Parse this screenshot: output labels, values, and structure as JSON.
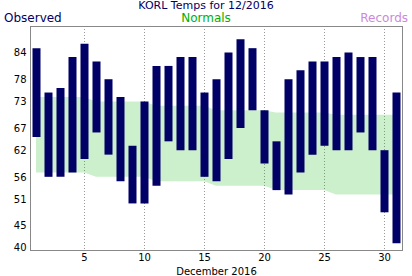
{
  "chart_data": {
    "type": "range_bar",
    "title": "KORL Temps for 12/2016",
    "x_label": "December 2016",
    "x": [
      1,
      2,
      3,
      4,
      5,
      6,
      7,
      8,
      9,
      10,
      11,
      12,
      13,
      14,
      15,
      16,
      17,
      18,
      19,
      20,
      21,
      22,
      23,
      24,
      25,
      26,
      27,
      28,
      29,
      30,
      31
    ],
    "series": [
      {
        "name": "Observed",
        "color": "#000066",
        "type": "bar",
        "high": [
          85,
          75,
          76,
          83,
          86,
          82,
          78,
          74,
          63,
          73,
          81,
          81,
          83,
          83,
          75,
          78,
          84,
          87,
          85,
          71,
          64,
          78,
          80,
          82,
          82,
          83,
          84,
          83,
          83,
          62,
          75
        ],
        "low": [
          65,
          56,
          56,
          57,
          60,
          66,
          61,
          55,
          50,
          50,
          54,
          64,
          62,
          62,
          56,
          55,
          60,
          67,
          71,
          59,
          53,
          52,
          57,
          61,
          63,
          62,
          62,
          66,
          62,
          48,
          41
        ]
      },
      {
        "name": "Normals",
        "color": "#00b000",
        "type": "area",
        "high": [
          74,
          74,
          74,
          74,
          74,
          73,
          73,
          73,
          73,
          73,
          72,
          72,
          72,
          72,
          72,
          71,
          71,
          71,
          71,
          71,
          70.5,
          70.5,
          70.5,
          70.5,
          70.5,
          70,
          70,
          70,
          70,
          70,
          70
        ],
        "low": [
          57,
          57,
          57,
          57,
          57,
          56,
          56,
          56,
          56,
          56,
          55,
          55,
          55,
          55,
          55,
          54,
          54,
          54,
          54,
          54,
          53,
          53,
          53,
          53,
          53,
          52,
          52,
          52,
          52,
          52,
          52
        ]
      },
      {
        "name": "Records",
        "color": "#cc88dd",
        "type": "bar",
        "high": [
          null,
          null,
          null,
          null,
          null,
          null,
          null,
          null,
          null,
          null,
          null,
          null,
          null,
          null,
          null,
          null,
          null,
          null,
          null,
          null,
          null,
          null,
          null,
          null,
          null,
          null,
          null,
          null,
          null,
          null,
          null
        ],
        "low": [
          null,
          null,
          null,
          null,
          null,
          null,
          null,
          null,
          null,
          null,
          null,
          null,
          null,
          null,
          null,
          null,
          null,
          null,
          null,
          null,
          null,
          null,
          null,
          null,
          null,
          null,
          null,
          null,
          null,
          null,
          null
        ]
      }
    ],
    "xlim": [
      0.5,
      31.5
    ],
    "xticks": [
      5,
      10,
      15,
      20,
      25,
      30
    ],
    "ylim": [
      39.5,
      90
    ],
    "yticks": [
      40,
      45,
      51,
      56,
      62,
      67,
      73,
      78,
      84
    ],
    "grid": true
  }
}
